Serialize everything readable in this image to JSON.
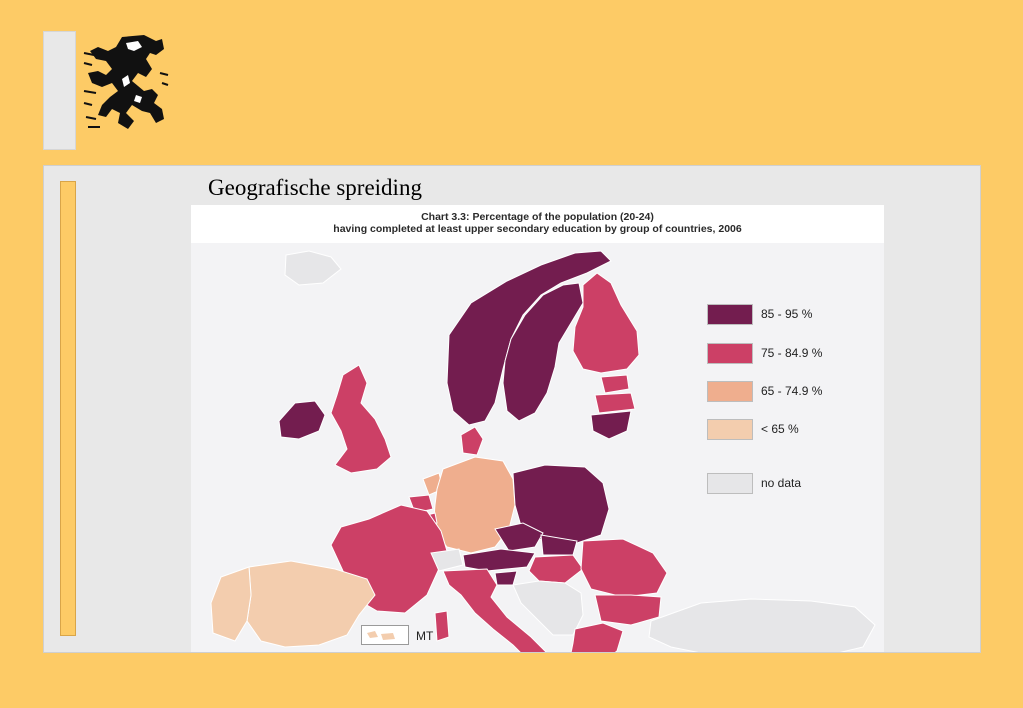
{
  "slide": {
    "title": "Geografische spreiding"
  },
  "chart": {
    "title_line1": "Chart 3.3: Percentage of the population (20-24)",
    "title_line2": "having completed at least upper secondary education by group of countries, 2006",
    "legend": [
      {
        "label": "85 - 95 %",
        "color": "#731D4F"
      },
      {
        "label": "75 - 84.9 %",
        "color": "#CC4066"
      },
      {
        "label": "65 - 74.9 %",
        "color": "#EFAE8E"
      },
      {
        "label": "< 65 %",
        "color": "#F3CDAE"
      },
      {
        "label": "no data",
        "color": "#E6E6E8"
      }
    ],
    "inset_label": "MT"
  },
  "colors": {
    "background": "#FDCB66",
    "panel": "#E8E8E8",
    "sea": "#F3F3F5"
  },
  "icons": {
    "logo": "flemish-lion-logo"
  }
}
